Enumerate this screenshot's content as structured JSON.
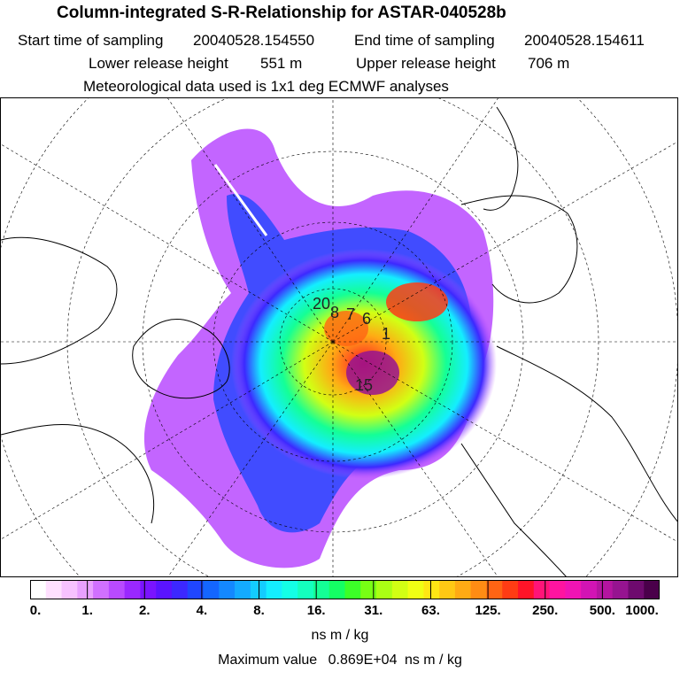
{
  "header": {
    "title": "Column-integrated S-R-Relationship for ASTAR-040528b",
    "start_label": "Start time of sampling",
    "start_value": "20040528.154550",
    "end_label": "End time of sampling",
    "end_value": "20040528.154611",
    "lower_label": "Lower release height",
    "lower_value": "551 m",
    "upper_label": "Upper release height",
    "upper_value": "706 m",
    "met_line": "Meteorological data used is 1x1 deg ECMWF analyses"
  },
  "map": {
    "projection": "polar-stereographic",
    "plot_labels": [
      "20",
      "8",
      "7",
      "6",
      "15",
      "1"
    ]
  },
  "legend": {
    "tick_labels": [
      "0.",
      "1.",
      "2.",
      "4.",
      "8.",
      "16.",
      "31.",
      "63.",
      "125.",
      "250.",
      "500.",
      "1000."
    ],
    "colors": [
      "#ffffff",
      "#ffe0ff",
      "#f7c2ff",
      "#e8a0ff",
      "#d070ff",
      "#b84aff",
      "#9a28ff",
      "#7a14ff",
      "#5a14ff",
      "#3c28ff",
      "#2046ff",
      "#1466ff",
      "#1488ff",
      "#14aaff",
      "#14ccff",
      "#14eeff",
      "#14ffe6",
      "#14ffbe",
      "#14ff96",
      "#14ff64",
      "#3cff28",
      "#78ff14",
      "#aaff14",
      "#d2ff14",
      "#f0ff14",
      "#ffe614",
      "#ffc814",
      "#ffaa14",
      "#ff8c14",
      "#ff6414",
      "#ff3c14",
      "#ff1428",
      "#ff1478",
      "#ff14a0",
      "#f014b4",
      "#d214b4",
      "#b414a0",
      "#961490",
      "#6e0a6e",
      "#4a004a"
    ],
    "unit": "ns m / kg",
    "max_label": "Maximum value",
    "max_value": "0.869E+04",
    "max_unit": "ns m / kg"
  }
}
